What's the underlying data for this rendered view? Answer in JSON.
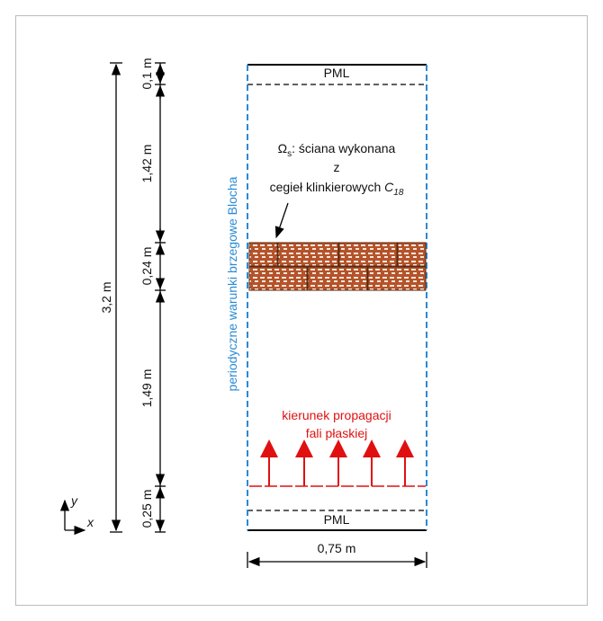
{
  "pml_top": "PML",
  "pml_bottom": "PML",
  "wall_label": {
    "omega": "Ω",
    "omega_sub": "s",
    "line1": ": ściana wykonana",
    "line2": "z",
    "line3": "cegieł klinkierowych ",
    "c": "C",
    "c_sub": "18"
  },
  "boundary_label": "periodyczne warunki brzegowe Blocha",
  "wave_label": {
    "line1": "kierunek propagacji",
    "line2": "fali płaskiej"
  },
  "dimensions": {
    "total": "3,2 m",
    "pml_top": "0,1 m",
    "upper_air": "1,42 m",
    "wall": "0,24 m",
    "lower_air": "1,49 m",
    "bottom": "0,25 m",
    "width": "0,75 m"
  },
  "axes": {
    "y": "y",
    "x": "x"
  }
}
